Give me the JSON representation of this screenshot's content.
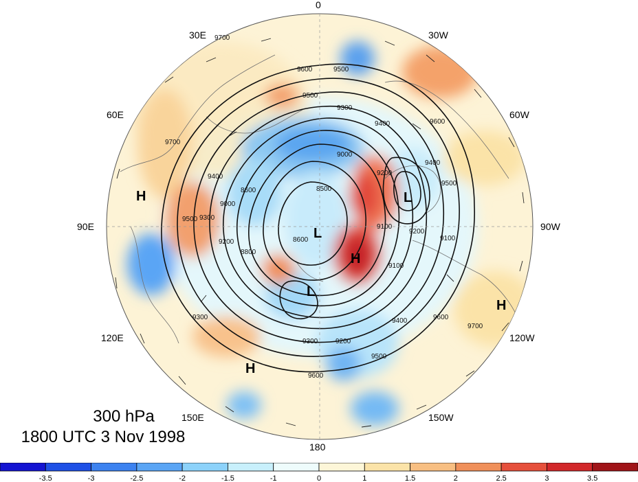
{
  "map": {
    "level": "300 hPa",
    "valid_time": "1800 UTC 3 Nov 1998",
    "longitude_labels": {
      "north": "0",
      "north_east": "30E",
      "north_west": "30W",
      "e60": "60E",
      "w60": "60W",
      "e90": "90E",
      "w90": "90W",
      "e120": "120E",
      "w120": "120W",
      "e150": "150E",
      "w150": "150W",
      "south": "180"
    },
    "centers": [
      "H",
      "L",
      "L",
      "H",
      "L",
      "H",
      "H"
    ],
    "contour_labels": [
      "9700",
      "9600",
      "9500",
      "9500",
      "9300",
      "9400",
      "9600",
      "9700",
      "9400",
      "9200",
      "9000",
      "9000",
      "8500",
      "8600",
      "8800",
      "9100",
      "9200",
      "9300",
      "9400",
      "9500",
      "9500",
      "9300",
      "9200",
      "9400",
      "9600",
      "9700",
      "9600",
      "9300",
      "9200",
      "9100",
      "8600",
      "9100",
      "9500"
    ],
    "colorbar": {
      "tick_labels": [
        "-3.5",
        "-3",
        "-2.5",
        "-2",
        "-1.5",
        "-1",
        "0",
        "1",
        "1.5",
        "2",
        "2.5",
        "3",
        "3.5"
      ],
      "colors": [
        "#1414d2",
        "#1e50e6",
        "#3c82f0",
        "#5aa5f5",
        "#8cd2fa",
        "#c8f0fc",
        "#eefcfc",
        "#fdf6d8",
        "#fbe3a8",
        "#f8bf82",
        "#f0905a",
        "#e6503c",
        "#d2282a",
        "#a01418"
      ]
    }
  }
}
